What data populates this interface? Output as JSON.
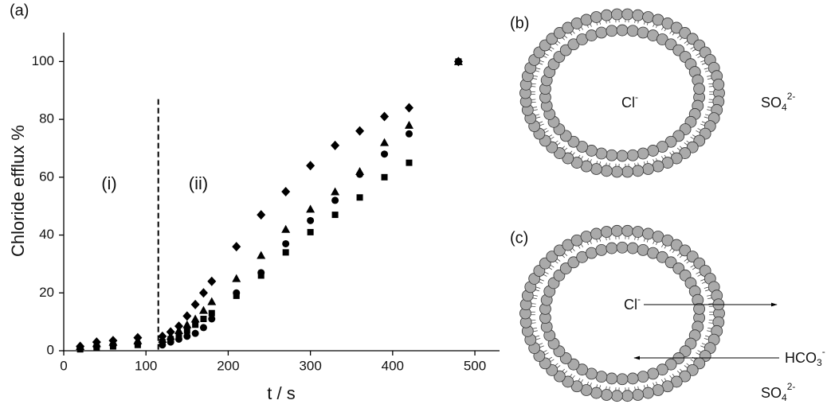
{
  "chart_data": {
    "type": "scatter",
    "panel_label": "(a)",
    "x_label": "t / s",
    "y_label": "Chloride efflux %",
    "annotations": [
      "(i)",
      "(ii)"
    ],
    "vline": 115,
    "x": [
      20,
      40,
      60,
      90,
      120,
      130,
      140,
      150,
      160,
      170,
      180,
      210,
      240,
      270,
      300,
      330,
      360,
      390,
      420,
      480
    ],
    "series": [
      {
        "marker": "square",
        "color": "#000000",
        "values": [
          0.5,
          1,
          1.5,
          2,
          3,
          4,
          5,
          7,
          9,
          11,
          13,
          19,
          26,
          34,
          41,
          47,
          53,
          60,
          65,
          100
        ]
      },
      {
        "marker": "circle",
        "color": "#000000",
        "values": [
          1,
          1.5,
          2,
          2.5,
          2,
          3,
          4,
          5,
          6,
          8,
          11,
          20,
          27,
          37,
          45,
          52,
          61,
          68,
          75,
          100
        ]
      },
      {
        "marker": "triangle",
        "color": "#000000",
        "values": [
          1.5,
          2.5,
          3,
          3.5,
          4,
          5,
          7,
          9,
          11,
          14,
          17,
          25,
          33,
          42,
          49,
          55,
          62,
          72,
          78,
          100
        ]
      },
      {
        "marker": "diamond",
        "color": "#000000",
        "values": [
          1.5,
          3,
          3.5,
          4.5,
          5,
          6.5,
          8.5,
          12,
          16,
          20,
          24,
          36,
          47,
          55,
          64,
          71,
          76,
          81,
          84,
          100
        ]
      }
    ],
    "xlim": [
      0,
      530
    ],
    "ylim": [
      0,
      110
    ],
    "xticks": [
      0,
      100,
      200,
      300,
      400,
      500
    ],
    "yticks": [
      0,
      20,
      40,
      60,
      80,
      100
    ]
  },
  "diagram_b": {
    "panel_label": "(b)",
    "inside": {
      "text": "Cl",
      "sup": "-"
    },
    "outside": {
      "text": "SO",
      "sub": "4",
      "sup": "2-"
    }
  },
  "diagram_c": {
    "panel_label": "(c)",
    "inside": {
      "text": "Cl",
      "sup": "-"
    },
    "incoming": {
      "text": "HCO",
      "sub": "3",
      "sup": "-"
    },
    "outside": {
      "text": "SO",
      "sub": "4",
      "sup": "2-"
    }
  }
}
